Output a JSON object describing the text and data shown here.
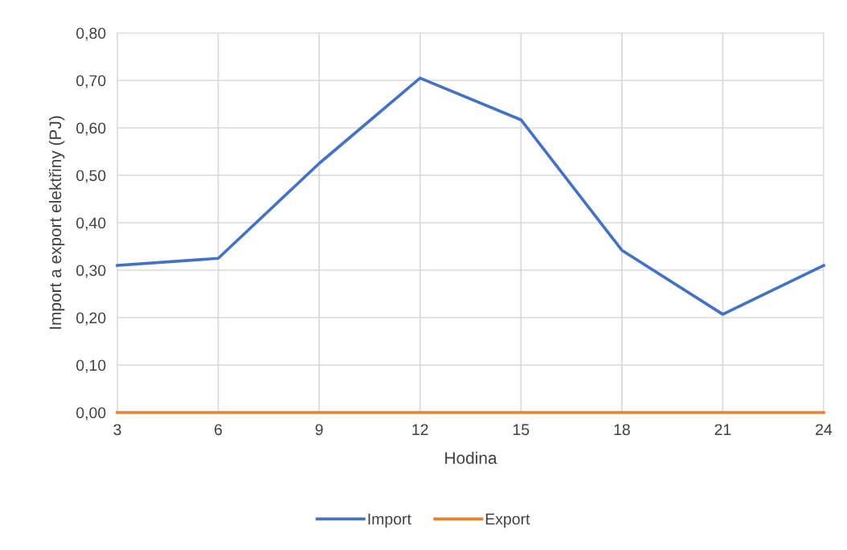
{
  "chart_data": {
    "type": "line",
    "xlabel": "Hodina",
    "ylabel": "Import a export elektřiny (PJ)",
    "categories": [
      "3",
      "6",
      "9",
      "12",
      "15",
      "18",
      "21",
      "24"
    ],
    "series": [
      {
        "name": "Import",
        "color": "#4472c4",
        "values": [
          0.31,
          0.325,
          0.525,
          0.705,
          0.617,
          0.342,
          0.207,
          0.31
        ]
      },
      {
        "name": "Export",
        "color": "#ed7d31",
        "values": [
          0,
          0,
          0,
          0,
          0,
          0,
          0,
          0
        ]
      }
    ],
    "ylim": [
      0,
      0.8
    ],
    "yticks": [
      {
        "value": 0,
        "label": "0,00"
      },
      {
        "value": 0.1,
        "label": "0,10"
      },
      {
        "value": 0.2,
        "label": "0,20"
      },
      {
        "value": 0.3,
        "label": "0,30"
      },
      {
        "value": 0.4,
        "label": "0,40"
      },
      {
        "value": 0.5,
        "label": "0,50"
      },
      {
        "value": 0.6,
        "label": "0,60"
      },
      {
        "value": 0.7,
        "label": "0,70"
      },
      {
        "value": 0.8,
        "label": "0,80"
      }
    ],
    "grid": true,
    "legend": "bottom",
    "marker": "none",
    "line_style": "solid"
  }
}
